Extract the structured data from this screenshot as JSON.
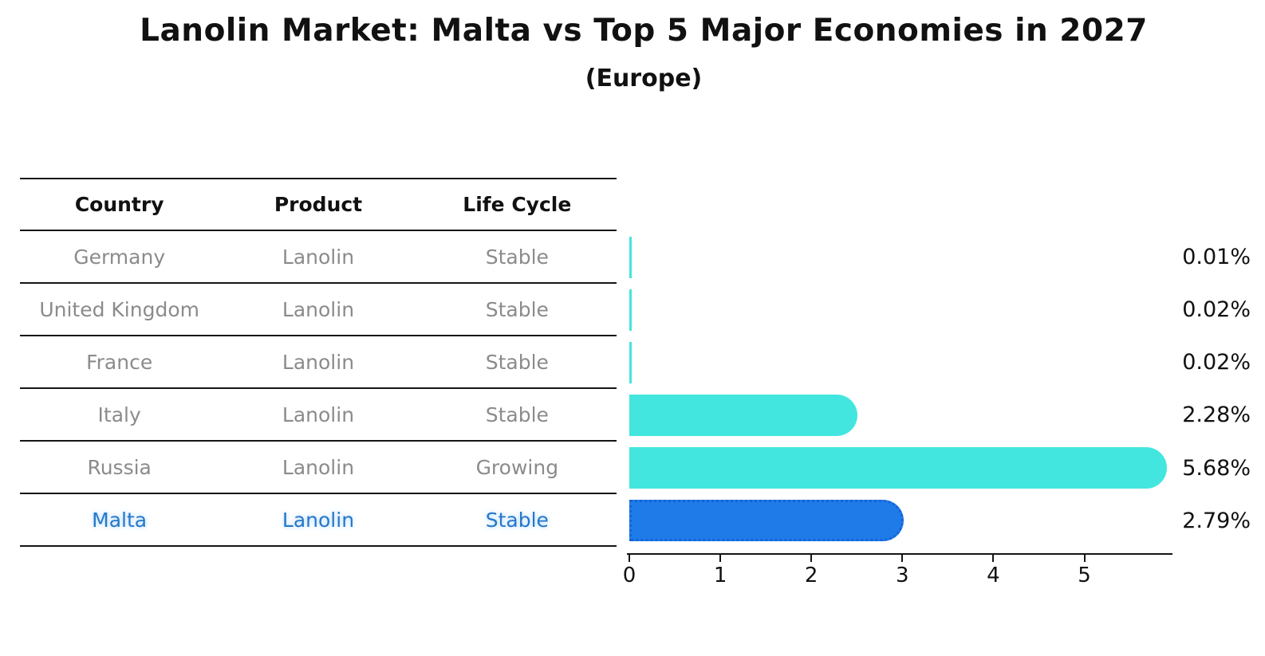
{
  "header": {
    "title": "Lanolin Market: Malta vs Top 5 Major Economies in 2027",
    "subtitle": "(Europe)"
  },
  "table": {
    "columns": [
      "Country",
      "Product",
      "Life Cycle"
    ],
    "rows": [
      {
        "country": "Germany",
        "product": "Lanolin",
        "life_cycle": "Stable",
        "value_label": "0.01%",
        "highlight": false
      },
      {
        "country": "United Kingdom",
        "product": "Lanolin",
        "life_cycle": "Stable",
        "value_label": "0.02%",
        "highlight": false
      },
      {
        "country": "France",
        "product": "Lanolin",
        "life_cycle": "Stable",
        "value_label": "0.02%",
        "highlight": false
      },
      {
        "country": "Italy",
        "product": "Lanolin",
        "life_cycle": "Stable",
        "value_label": "2.28%",
        "highlight": false
      },
      {
        "country": "Russia",
        "product": "Lanolin",
        "life_cycle": "Growing",
        "value_label": "5.68%",
        "highlight": false
      },
      {
        "country": "Malta",
        "product": "Lanolin",
        "life_cycle": "Stable",
        "value_label": "2.79%",
        "highlight": true
      }
    ]
  },
  "chart_data": {
    "type": "bar",
    "orientation": "horizontal",
    "title": "Lanolin Market: Malta vs Top 5 Major Economies in 2027",
    "subtitle": "(Europe)",
    "categories": [
      "Germany",
      "United Kingdom",
      "France",
      "Italy",
      "Russia",
      "Malta"
    ],
    "values": [
      0.01,
      0.02,
      0.02,
      2.28,
      5.68,
      2.79
    ],
    "value_labels": [
      "0.01%",
      "0.02%",
      "0.02%",
      "2.28%",
      "5.68%",
      "2.79%"
    ],
    "unit": "%",
    "xlim": [
      0,
      5.95
    ],
    "xticks": [
      0,
      1,
      2,
      3,
      4,
      5
    ],
    "xtick_labels": [
      "0",
      "1",
      "2",
      "3",
      "4",
      "5"
    ],
    "grid": false,
    "legend": "none",
    "highlight_index": 5
  },
  "colors": {
    "cyan_bar": "#43E6DE",
    "blue_bar": "#1E7BE8",
    "blue_bar_border": "#1464D8",
    "highlight_text": "#2878C8",
    "gray_text": "#8B8B8B",
    "ink": "#111111"
  }
}
